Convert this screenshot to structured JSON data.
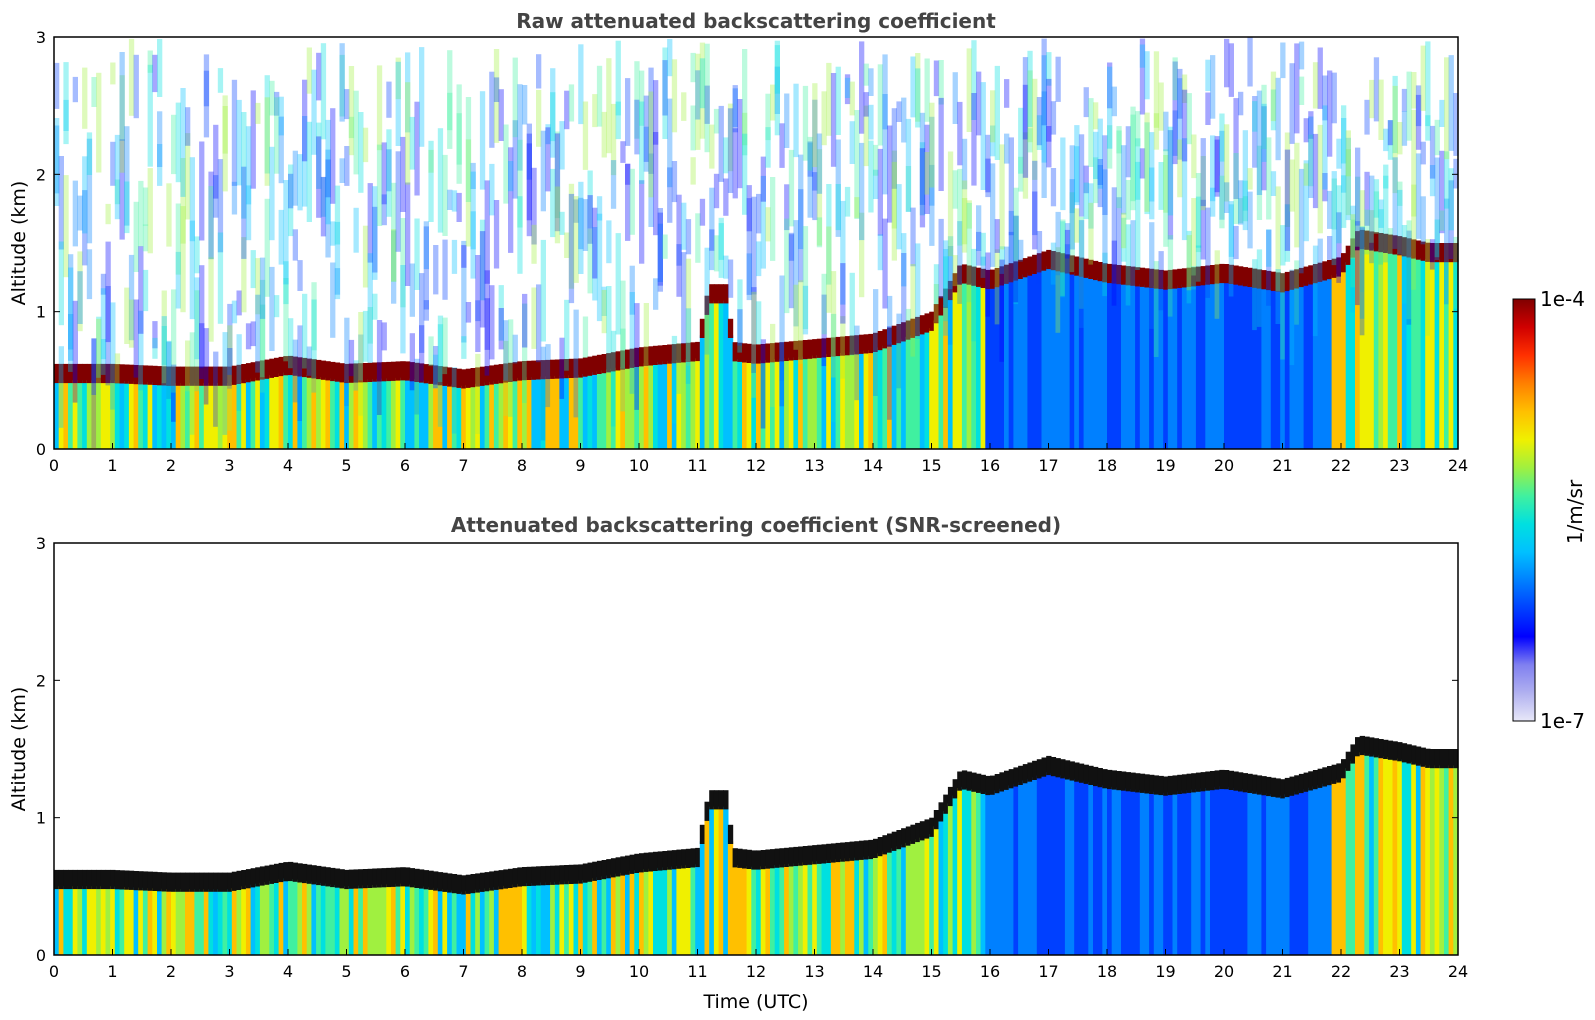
{
  "figure": {
    "xlabel": "Time (UTC)"
  },
  "chart_data": [
    {
      "type": "heatmap",
      "title": "Raw attenuated backscattering coefficient",
      "xlabel": "",
      "ylabel": "Altitude (km)",
      "xlim": [
        0,
        24
      ],
      "ylim": [
        0,
        3
      ],
      "xticks": [
        "0",
        "1",
        "2",
        "3",
        "4",
        "5",
        "6",
        "7",
        "8",
        "9",
        "10",
        "11",
        "12",
        "13",
        "14",
        "15",
        "16",
        "17",
        "18",
        "19",
        "20",
        "21",
        "22",
        "23",
        "24"
      ],
      "yticks": [
        "0",
        "1",
        "2",
        "3"
      ],
      "colorscale": "log",
      "layer_top_km": [
        [
          0,
          0.62
        ],
        [
          1,
          0.62
        ],
        [
          2,
          0.6
        ],
        [
          3,
          0.6
        ],
        [
          4,
          0.68
        ],
        [
          5,
          0.62
        ],
        [
          6,
          0.64
        ],
        [
          7,
          0.58
        ],
        [
          8,
          0.64
        ],
        [
          9,
          0.66
        ],
        [
          10,
          0.74
        ],
        [
          11,
          0.78
        ],
        [
          11.2,
          1.2
        ],
        [
          11.5,
          1.2
        ],
        [
          11.6,
          0.78
        ],
        [
          12,
          0.76
        ],
        [
          13,
          0.8
        ],
        [
          14,
          0.84
        ],
        [
          15,
          1.0
        ],
        [
          15.5,
          1.35
        ],
        [
          16,
          1.3
        ],
        [
          17,
          1.45
        ],
        [
          18,
          1.35
        ],
        [
          19,
          1.3
        ],
        [
          20,
          1.35
        ],
        [
          21,
          1.28
        ],
        [
          22,
          1.4
        ],
        [
          22.3,
          1.6
        ],
        [
          23,
          1.55
        ],
        [
          23.5,
          1.5
        ]
      ],
      "noise": true
    },
    {
      "type": "heatmap",
      "title": "Attenuated backscattering coefficient (SNR-screened)",
      "xlabel": "Time (UTC)",
      "ylabel": "Altitude (km)",
      "xlim": [
        0,
        24
      ],
      "ylim": [
        0,
        3
      ],
      "xticks": [
        "0",
        "1",
        "2",
        "3",
        "4",
        "5",
        "6",
        "7",
        "8",
        "9",
        "10",
        "11",
        "12",
        "13",
        "14",
        "15",
        "16",
        "17",
        "18",
        "19",
        "20",
        "21",
        "22",
        "23",
        "24"
      ],
      "yticks": [
        "0",
        "1",
        "2",
        "3"
      ],
      "colorscale": "log",
      "layer_top_km": [
        [
          0,
          0.62
        ],
        [
          1,
          0.62
        ],
        [
          2,
          0.6
        ],
        [
          3,
          0.6
        ],
        [
          4,
          0.68
        ],
        [
          5,
          0.62
        ],
        [
          6,
          0.64
        ],
        [
          7,
          0.58
        ],
        [
          8,
          0.64
        ],
        [
          9,
          0.66
        ],
        [
          10,
          0.74
        ],
        [
          11,
          0.78
        ],
        [
          11.2,
          1.2
        ],
        [
          11.5,
          1.2
        ],
        [
          11.6,
          0.78
        ],
        [
          12,
          0.76
        ],
        [
          13,
          0.8
        ],
        [
          14,
          0.84
        ],
        [
          15,
          1.0
        ],
        [
          15.5,
          1.35
        ],
        [
          16,
          1.3
        ],
        [
          17,
          1.45
        ],
        [
          18,
          1.35
        ],
        [
          19,
          1.3
        ],
        [
          20,
          1.35
        ],
        [
          21,
          1.28
        ],
        [
          22,
          1.4
        ],
        [
          22.3,
          1.6
        ],
        [
          23,
          1.55
        ],
        [
          23.5,
          1.5
        ]
      ],
      "noise": false
    }
  ],
  "colorbar": {
    "max_label": "1e-4",
    "min_label": "1e-7",
    "unit_label": "1/m/sr",
    "colors": [
      "#e8e8f8",
      "#b0b0f0",
      "#8080f0",
      "#0000ff",
      "#0040ff",
      "#0080ff",
      "#00c0ff",
      "#00e0e0",
      "#40f0a0",
      "#a0f040",
      "#f0f000",
      "#ffc000",
      "#ff8000",
      "#ff3000",
      "#d00000",
      "#800000"
    ]
  }
}
